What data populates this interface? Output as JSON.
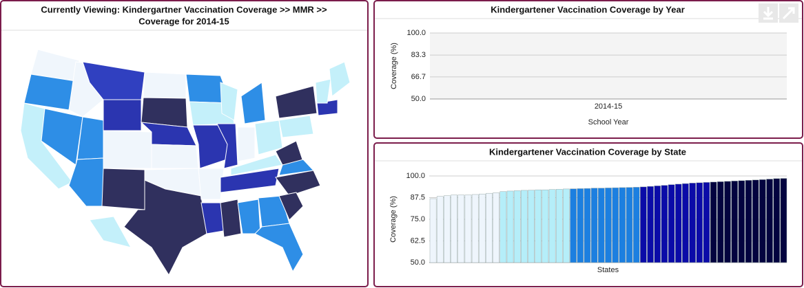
{
  "map": {
    "title_line1": "Currently Viewing:  Kindergartner Vaccination Coverage  >>  MMR   >>",
    "title_line2": "Coverage for 2014-15"
  },
  "chart_data": [
    {
      "type": "bar",
      "title": "Kindergartener Vaccination Coverage by Year",
      "ylabel": "Coverage (%)",
      "xlabel": "School Year",
      "categories": [
        "2014-15"
      ],
      "ylim": [
        50,
        100
      ],
      "yticks": [
        {
          "value": 50,
          "label": "50.0"
        },
        {
          "value": 66.7,
          "label": "66.7"
        },
        {
          "value": 83.3,
          "label": "83.3"
        },
        {
          "value": 100,
          "label": "100.0"
        }
      ],
      "grid": true,
      "plot_background": "#f4f4f4"
    },
    {
      "type": "bar",
      "title": "Kindergartener Vaccination Coverage by State",
      "ylabel": "Coverage (%)",
      "xlabel": "States",
      "ylim": [
        50,
        100
      ],
      "yticks": [
        {
          "value": 50,
          "label": "50.0"
        },
        {
          "value": 62.5,
          "label": "62.5"
        },
        {
          "value": 75,
          "label": "75.0"
        },
        {
          "value": 87.5,
          "label": "87.5"
        },
        {
          "value": 100,
          "label": "100.0"
        }
      ],
      "grid": true,
      "plot_background": "#ffffff",
      "values": [
        86.9,
        88.2,
        88.6,
        89,
        89,
        89,
        89.3,
        89.6,
        90,
        90.3,
        91,
        91.3,
        91.5,
        91.7,
        91.8,
        92,
        92,
        92.2,
        92.3,
        92.5,
        92.6,
        92.7,
        92.8,
        93,
        93,
        93.1,
        93.2,
        93.3,
        93.4,
        93.5,
        93.7,
        94,
        94.3,
        94.6,
        95,
        95.3,
        95.6,
        95.9,
        96.1,
        96.3,
        96.5,
        96.7,
        96.9,
        97.1,
        97.3,
        97.5,
        97.7,
        97.9,
        98.2,
        98.5,
        98.6
      ],
      "colors": [
        "#eef5fc",
        "#eef5fc",
        "#eef5fc",
        "#eef5fc",
        "#eef5fc",
        "#eef5fc",
        "#eef5fc",
        "#eef5fc",
        "#eef5fc",
        "#eef5fc",
        "#b5eef9",
        "#b5eef9",
        "#b5eef9",
        "#b5eef9",
        "#b5eef9",
        "#b5eef9",
        "#b5eef9",
        "#b5eef9",
        "#b5eef9",
        "#b5eef9",
        "#1c7fe0",
        "#1c7fe0",
        "#1c7fe0",
        "#1c7fe0",
        "#1c7fe0",
        "#1c7fe0",
        "#1c7fe0",
        "#1c7fe0",
        "#1c7fe0",
        "#1c7fe0",
        "#0b0ba8",
        "#0b0ba8",
        "#0b0ba8",
        "#0b0ba8",
        "#0b0ba8",
        "#0b0ba8",
        "#0b0ba8",
        "#0b0ba8",
        "#0b0ba8",
        "#0b0ba8",
        "#03033f",
        "#03033f",
        "#03033f",
        "#03033f",
        "#03033f",
        "#03033f",
        "#03033f",
        "#03033f",
        "#03033f",
        "#03033f",
        "#03033f"
      ]
    }
  ]
}
